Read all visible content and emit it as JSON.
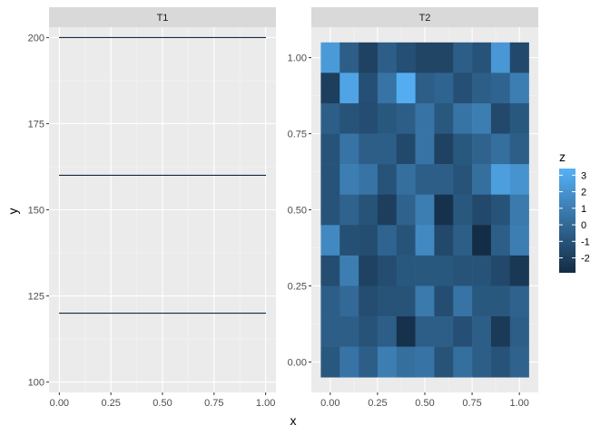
{
  "chart_data": {
    "type": "heatmap",
    "xlabel": "x",
    "ylabel": "y",
    "panels": [
      {
        "strip": "T1",
        "xlim": [
          -0.05,
          1.05
        ],
        "ylim": [
          97,
          203
        ],
        "xticks": [
          0,
          0.25,
          0.5,
          0.75,
          1
        ],
        "xtick_labels": [
          "0.00",
          "0.25",
          "0.50",
          "0.75",
          "1.00"
        ],
        "yticks": [
          100,
          125,
          150,
          175,
          200
        ],
        "ytick_labels": [
          "100",
          "125",
          "150",
          "175",
          "200"
        ],
        "grid": true,
        "lines": [
          {
            "x": [
              -0.05,
              1.05
            ],
            "y": [
              200,
              200
            ]
          },
          {
            "x": [
              -0.05,
              1.05
            ],
            "y": [
              160,
              160
            ]
          },
          {
            "x": [
              -0.05,
              1.05
            ],
            "y": [
              120,
              120
            ]
          }
        ]
      },
      {
        "strip": "T2",
        "xlim": [
          -0.1,
          1.1
        ],
        "ylim": [
          -0.1,
          1.1
        ],
        "xticks": [
          0,
          0.25,
          0.5,
          0.75,
          1
        ],
        "xtick_labels": [
          "0.00",
          "0.25",
          "0.50",
          "0.75",
          "1.00"
        ],
        "yticks": [
          0,
          0.25,
          0.5,
          0.75,
          1
        ],
        "ytick_labels": [
          "0.00",
          "0.25",
          "0.50",
          "0.75",
          "1.00"
        ],
        "grid": true,
        "tiles": {
          "x": [
            0,
            0.1,
            0.2,
            0.3,
            0.4,
            0.5,
            0.6,
            0.7,
            0.8,
            0.9,
            1.0
          ],
          "y": [
            1.0,
            0.9,
            0.8,
            0.7,
            0.6,
            0.5,
            0.4,
            0.3,
            0.2,
            0.1,
            0.0
          ],
          "z": [
            [
              2.3,
              -0.5,
              -1.8,
              -0.5,
              -1.2,
              -1.7,
              -1.7,
              -0.5,
              -1.0,
              2.2,
              -1.5
            ],
            [
              -2.0,
              2.8,
              -1.2,
              0.5,
              3.2,
              -0.5,
              -0.2,
              -1.2,
              -0.5,
              -0.2,
              1.0
            ],
            [
              -0.5,
              -1.0,
              -1.3,
              -0.8,
              -0.5,
              0.5,
              -0.8,
              0.5,
              1.0,
              -1.5,
              -0.8
            ],
            [
              -1.0,
              0.5,
              -0.5,
              -0.5,
              -1.5,
              0.5,
              -1.8,
              -0.8,
              -0.3,
              0.3,
              -0.5
            ],
            [
              -1.0,
              1.0,
              0.5,
              -1.0,
              0.3,
              -0.5,
              -0.5,
              -1.0,
              0.3,
              2.5,
              2.0
            ],
            [
              -1.0,
              -0.3,
              -1.0,
              -2.0,
              -0.3,
              1.0,
              -2.6,
              -0.8,
              -1.5,
              -1.0,
              0.8
            ],
            [
              1.5,
              -1.2,
              -1.3,
              -0.2,
              -1.0,
              1.5,
              -1.5,
              -0.5,
              -2.8,
              -0.5,
              1.0
            ],
            [
              -1.3,
              1.0,
              -1.8,
              -1.3,
              -0.8,
              -0.8,
              -0.8,
              -1.0,
              -1.0,
              -1.5,
              -2.3
            ],
            [
              -0.5,
              0.0,
              -1.3,
              -1.0,
              -1.0,
              0.8,
              -1.3,
              0.5,
              -0.8,
              -0.8,
              -0.3
            ],
            [
              -0.5,
              -0.5,
              -1.0,
              -0.5,
              -2.6,
              -0.5,
              -0.5,
              -1.2,
              -0.5,
              -2.2,
              -0.5
            ],
            [
              -0.8,
              0.5,
              -0.5,
              1.0,
              0.3,
              0.5,
              -1.0,
              0.3,
              -0.5,
              -1.0,
              -0.3
            ]
          ]
        }
      }
    ],
    "legend": {
      "title": "z",
      "placement": "right",
      "breaks": [
        3,
        2,
        1,
        0,
        -1,
        -2
      ],
      "labels": [
        "3",
        "2",
        "1",
        "0",
        "-1",
        "-2"
      ],
      "range": [
        -2.9,
        3.4
      ],
      "low_color": "#132B43",
      "high_color": "#56B1F7"
    },
    "colors": {
      "panel_background": "#EBEBEB",
      "strip_background": "#D9D9D9",
      "line": "#132B43"
    }
  }
}
